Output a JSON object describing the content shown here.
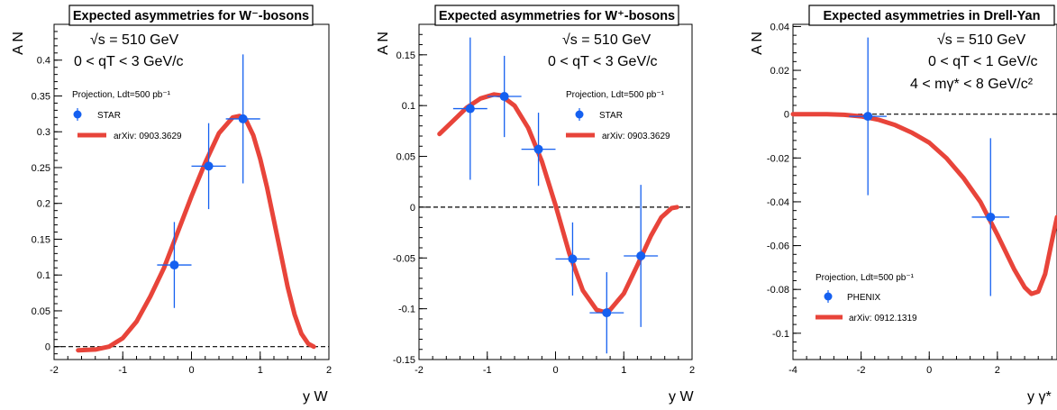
{
  "colors": {
    "curve": "#e8443a",
    "points": "#1560f0",
    "axes": "#000000",
    "zero_line": "#000000"
  },
  "chart_data": [
    {
      "type": "scatter",
      "title": "Expected asymmetries for W⁻-bosons",
      "ylabel": "A N",
      "xlabel": "y W",
      "xlim": [
        -2,
        2
      ],
      "ylim": [
        -0.018,
        0.45
      ],
      "xticks": [
        "-2",
        "-1",
        "0",
        "1",
        "2"
      ],
      "yticks": [
        "0",
        "0.05",
        "0.1",
        "0.15",
        "0.2",
        "0.25",
        "0.3",
        "0.35",
        "0.4"
      ],
      "annotations": [
        "√s = 510 GeV",
        "0 < qT < 3 GeV/c",
        "Projection, Ldt=500 pb⁻¹"
      ],
      "grid": false,
      "legend_position": "upper-left",
      "series": [
        {
          "name": "STAR",
          "kind": "points",
          "x": [
            -0.25,
            0.25,
            0.75
          ],
          "y": [
            0.114,
            0.252,
            0.318
          ],
          "xerr": [
            0.25,
            0.25,
            0.25
          ],
          "yerr": [
            0.06,
            0.06,
            0.09
          ]
        },
        {
          "name": "arXiv: 0903.3629",
          "kind": "curve",
          "x": [
            -1.65,
            -1.4,
            -1.2,
            -1.0,
            -0.8,
            -0.6,
            -0.4,
            -0.2,
            0.0,
            0.2,
            0.4,
            0.6,
            0.7,
            0.8,
            0.9,
            1.0,
            1.1,
            1.2,
            1.3,
            1.4,
            1.5,
            1.6,
            1.7,
            1.78
          ],
          "y": [
            -0.005,
            -0.004,
            0.0,
            0.012,
            0.035,
            0.07,
            0.11,
            0.16,
            0.21,
            0.257,
            0.298,
            0.32,
            0.322,
            0.315,
            0.295,
            0.262,
            0.222,
            0.176,
            0.13,
            0.083,
            0.045,
            0.018,
            0.004,
            0.0
          ]
        }
      ]
    },
    {
      "type": "scatter",
      "title": "Expected asymmetries for W⁺-bosons",
      "ylabel": "A N",
      "xlabel": "y W",
      "xlim": [
        -2,
        2
      ],
      "ylim": [
        -0.15,
        0.18
      ],
      "xticks": [
        "-2",
        "-1",
        "0",
        "1",
        "2"
      ],
      "yticks": [
        "-0.15",
        "-0.1",
        "-0.05",
        "0",
        "0.05",
        "0.1",
        "0.15"
      ],
      "annotations": [
        "√s = 510 GeV",
        "0 < qT < 3 GeV/c",
        "Projection, Ldt=500 pb⁻¹"
      ],
      "grid": false,
      "legend_position": "upper-right",
      "series": [
        {
          "name": "STAR",
          "kind": "points",
          "x": [
            -1.25,
            -0.75,
            -0.25,
            0.25,
            0.75,
            1.25
          ],
          "y": [
            0.097,
            0.109,
            0.057,
            -0.051,
            -0.104,
            -0.048
          ],
          "xerr": [
            0.25,
            0.25,
            0.25,
            0.25,
            0.25,
            0.25
          ],
          "yerr": [
            0.07,
            0.04,
            0.036,
            0.036,
            0.04,
            0.07
          ]
        },
        {
          "name": "arXiv: 0903.3629",
          "kind": "curve",
          "x": [
            -1.7,
            -1.5,
            -1.3,
            -1.1,
            -0.9,
            -0.8,
            -0.6,
            -0.4,
            -0.2,
            0.0,
            0.2,
            0.4,
            0.6,
            0.7,
            0.8,
            1.0,
            1.2,
            1.4,
            1.55,
            1.7,
            1.78
          ],
          "y": [
            0.072,
            0.085,
            0.098,
            0.107,
            0.111,
            0.11,
            0.1,
            0.078,
            0.045,
            0.002,
            -0.045,
            -0.082,
            -0.101,
            -0.103,
            -0.101,
            -0.085,
            -0.057,
            -0.028,
            -0.01,
            -0.001,
            0.0
          ]
        }
      ]
    },
    {
      "type": "scatter",
      "title": "Expected asymmetries in Drell-Yan",
      "ylabel": "A N",
      "xlabel": "y γ*",
      "xlim": [
        -4,
        3.75
      ],
      "ylim": [
        -0.112,
        0.041
      ],
      "xticks": [
        "-4",
        "-2",
        "0",
        "2"
      ],
      "yticks": [
        "-0.1",
        "-0.08",
        "-0.06",
        "-0.04",
        "-0.02",
        "0",
        "0.02",
        "0.04"
      ],
      "annotations": [
        "√s = 510 GeV",
        "0 < qT < 1 GeV/c",
        "4 < mγ* < 8 GeV/c²",
        "Projection, Ldt=500 pb⁻¹"
      ],
      "grid": false,
      "legend_position": "lower-left",
      "series": [
        {
          "name": "PHENIX",
          "kind": "points",
          "x": [
            -1.8,
            1.8
          ],
          "y": [
            -0.001,
            -0.047
          ],
          "xerr": [
            0.55,
            0.55
          ],
          "yerr": [
            0.036,
            0.036
          ]
        },
        {
          "name": "arXiv: 0912.1319",
          "kind": "curve",
          "x": [
            -4.0,
            -3.0,
            -2.5,
            -2.0,
            -1.5,
            -1.0,
            -0.5,
            0.0,
            0.5,
            1.0,
            1.5,
            2.0,
            2.5,
            2.8,
            3.0,
            3.2,
            3.4,
            3.6,
            3.75
          ],
          "y": [
            0.0,
            0.0,
            -0.0003,
            -0.001,
            -0.0025,
            -0.005,
            -0.0085,
            -0.013,
            -0.02,
            -0.029,
            -0.04,
            -0.055,
            -0.071,
            -0.079,
            -0.082,
            -0.081,
            -0.073,
            -0.058,
            -0.047
          ]
        }
      ]
    }
  ]
}
